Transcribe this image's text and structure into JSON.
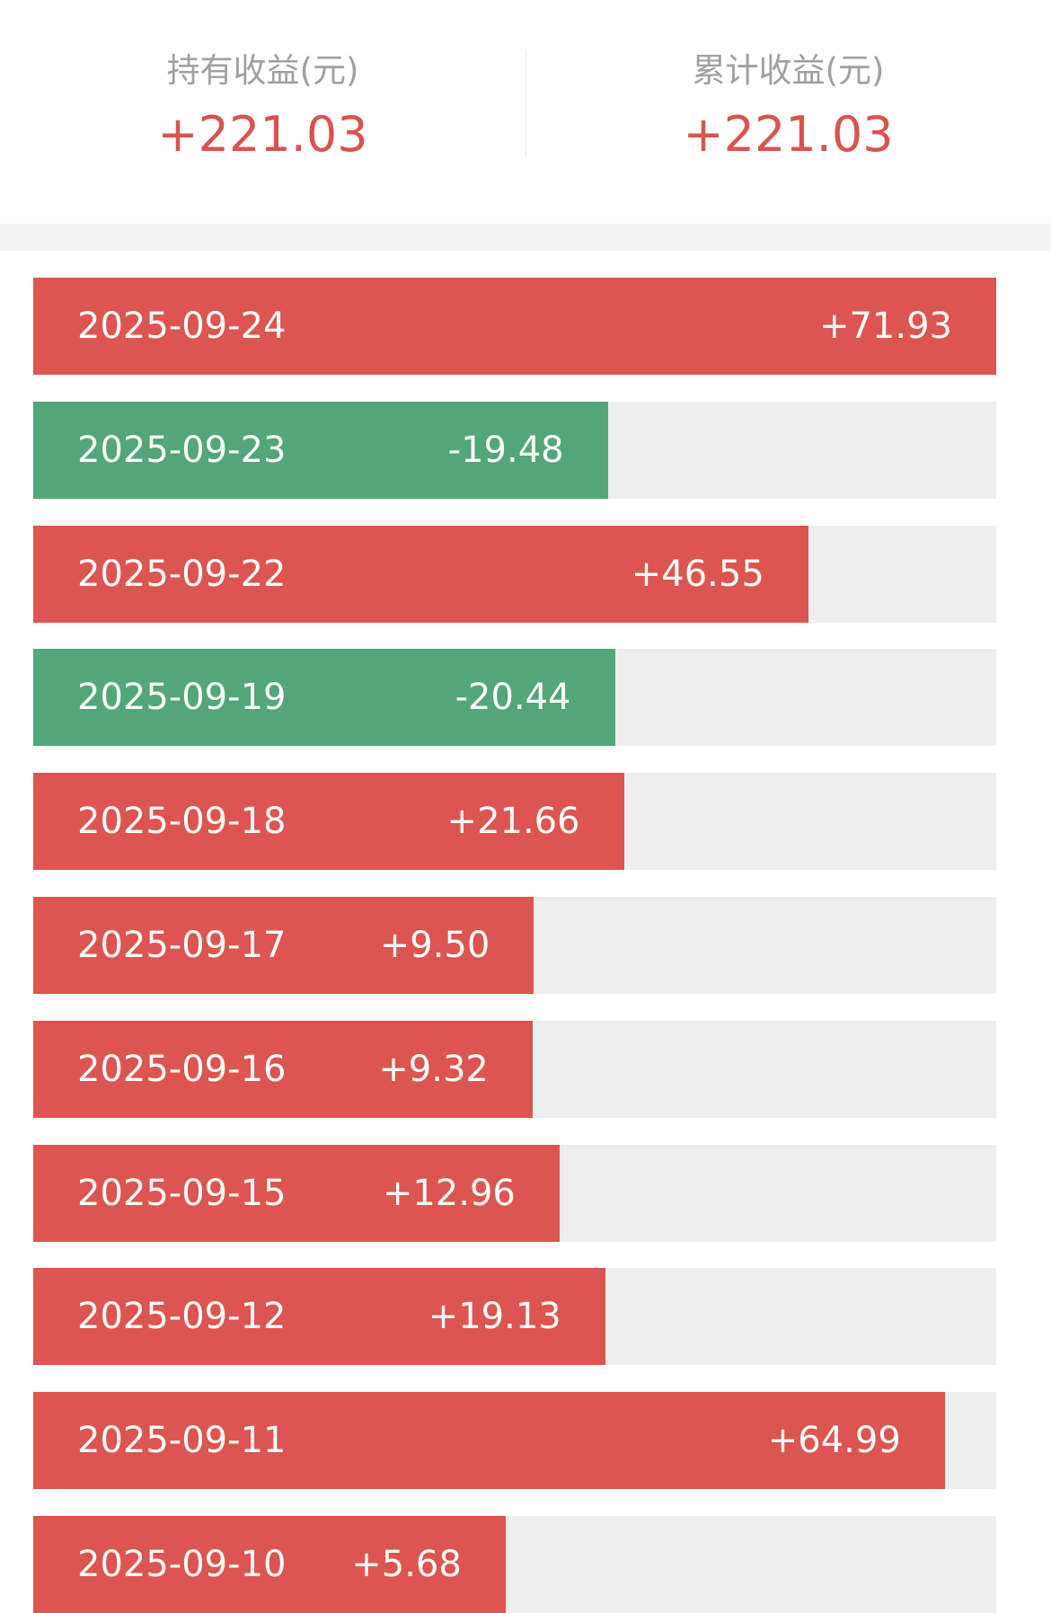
{
  "header": {
    "items": [
      {
        "label": "持有收益(元)",
        "value": 221.03,
        "value_label": "+221.03"
      },
      {
        "label": "累计收益(元)",
        "value": 221.03,
        "value_label": "+221.03"
      }
    ]
  },
  "list": {
    "rows": [
      {
        "date": "2025-09-24",
        "value": 71.93,
        "value_label": "+71.93"
      },
      {
        "date": "2025-09-23",
        "value": -19.48,
        "value_label": "-19.48"
      },
      {
        "date": "2025-09-22",
        "value": 46.55,
        "value_label": "+46.55"
      },
      {
        "date": "2025-09-19",
        "value": -20.44,
        "value_label": "-20.44"
      },
      {
        "date": "2025-09-18",
        "value": 21.66,
        "value_label": "+21.66"
      },
      {
        "date": "2025-09-17",
        "value": 9.5,
        "value_label": "+9.50"
      },
      {
        "date": "2025-09-16",
        "value": 9.32,
        "value_label": "+9.32"
      },
      {
        "date": "2025-09-15",
        "value": 12.96,
        "value_label": "+12.96"
      },
      {
        "date": "2025-09-12",
        "value": 19.13,
        "value_label": "+19.13"
      },
      {
        "date": "2025-09-11",
        "value": 64.99,
        "value_label": "+64.99"
      },
      {
        "date": "2025-09-10",
        "value": 5.68,
        "value_label": "+5.68"
      }
    ]
  }
}
